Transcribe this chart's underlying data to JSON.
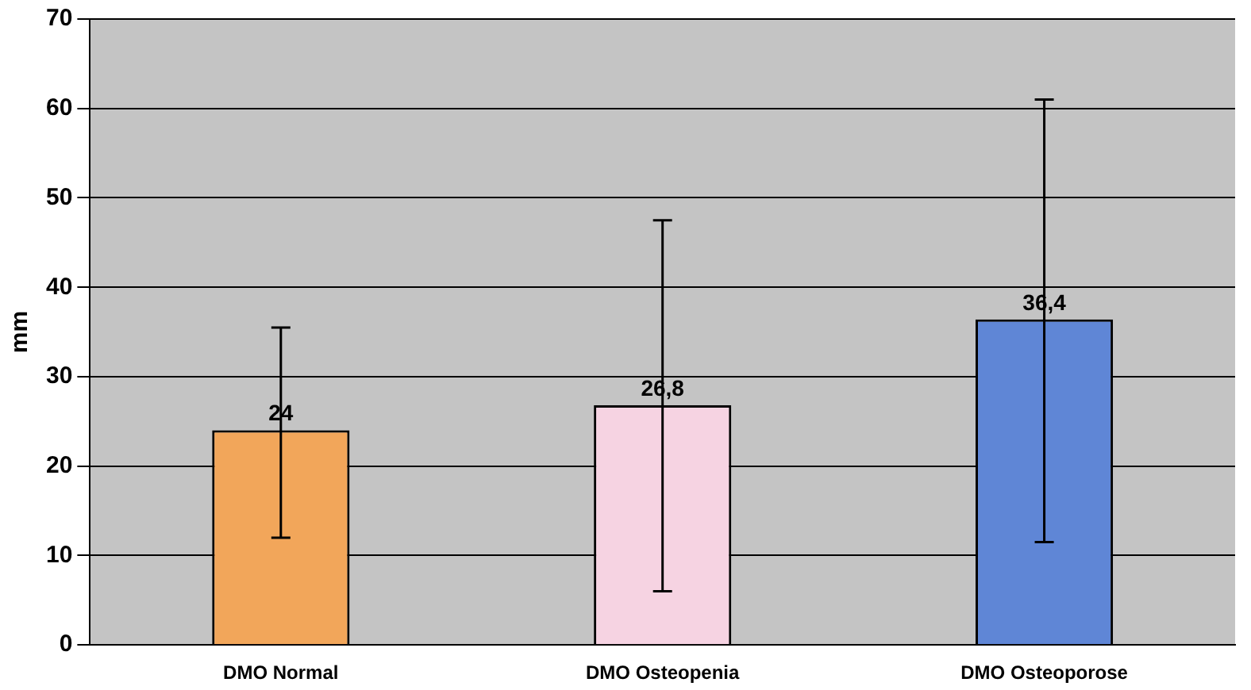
{
  "chart_data": {
    "type": "bar",
    "ylabel": "mm",
    "categories": [
      "DMO Normal",
      "DMO Osteopenia",
      "DMO Osteoporose"
    ],
    "values": [
      24,
      26.8,
      36.4
    ],
    "colors": [
      "#f2a65a",
      "#f6d3e2",
      "#5f86d6"
    ],
    "errors": [
      [
        12,
        35.5
      ],
      [
        6,
        47.5
      ],
      [
        11.5,
        61
      ]
    ],
    "value_labels": [
      "24",
      "26,8",
      "36,4"
    ],
    "ylim": [
      0,
      70
    ],
    "yticks": [
      0,
      10,
      20,
      30,
      40,
      50,
      60,
      70
    ],
    "grid": "y"
  }
}
